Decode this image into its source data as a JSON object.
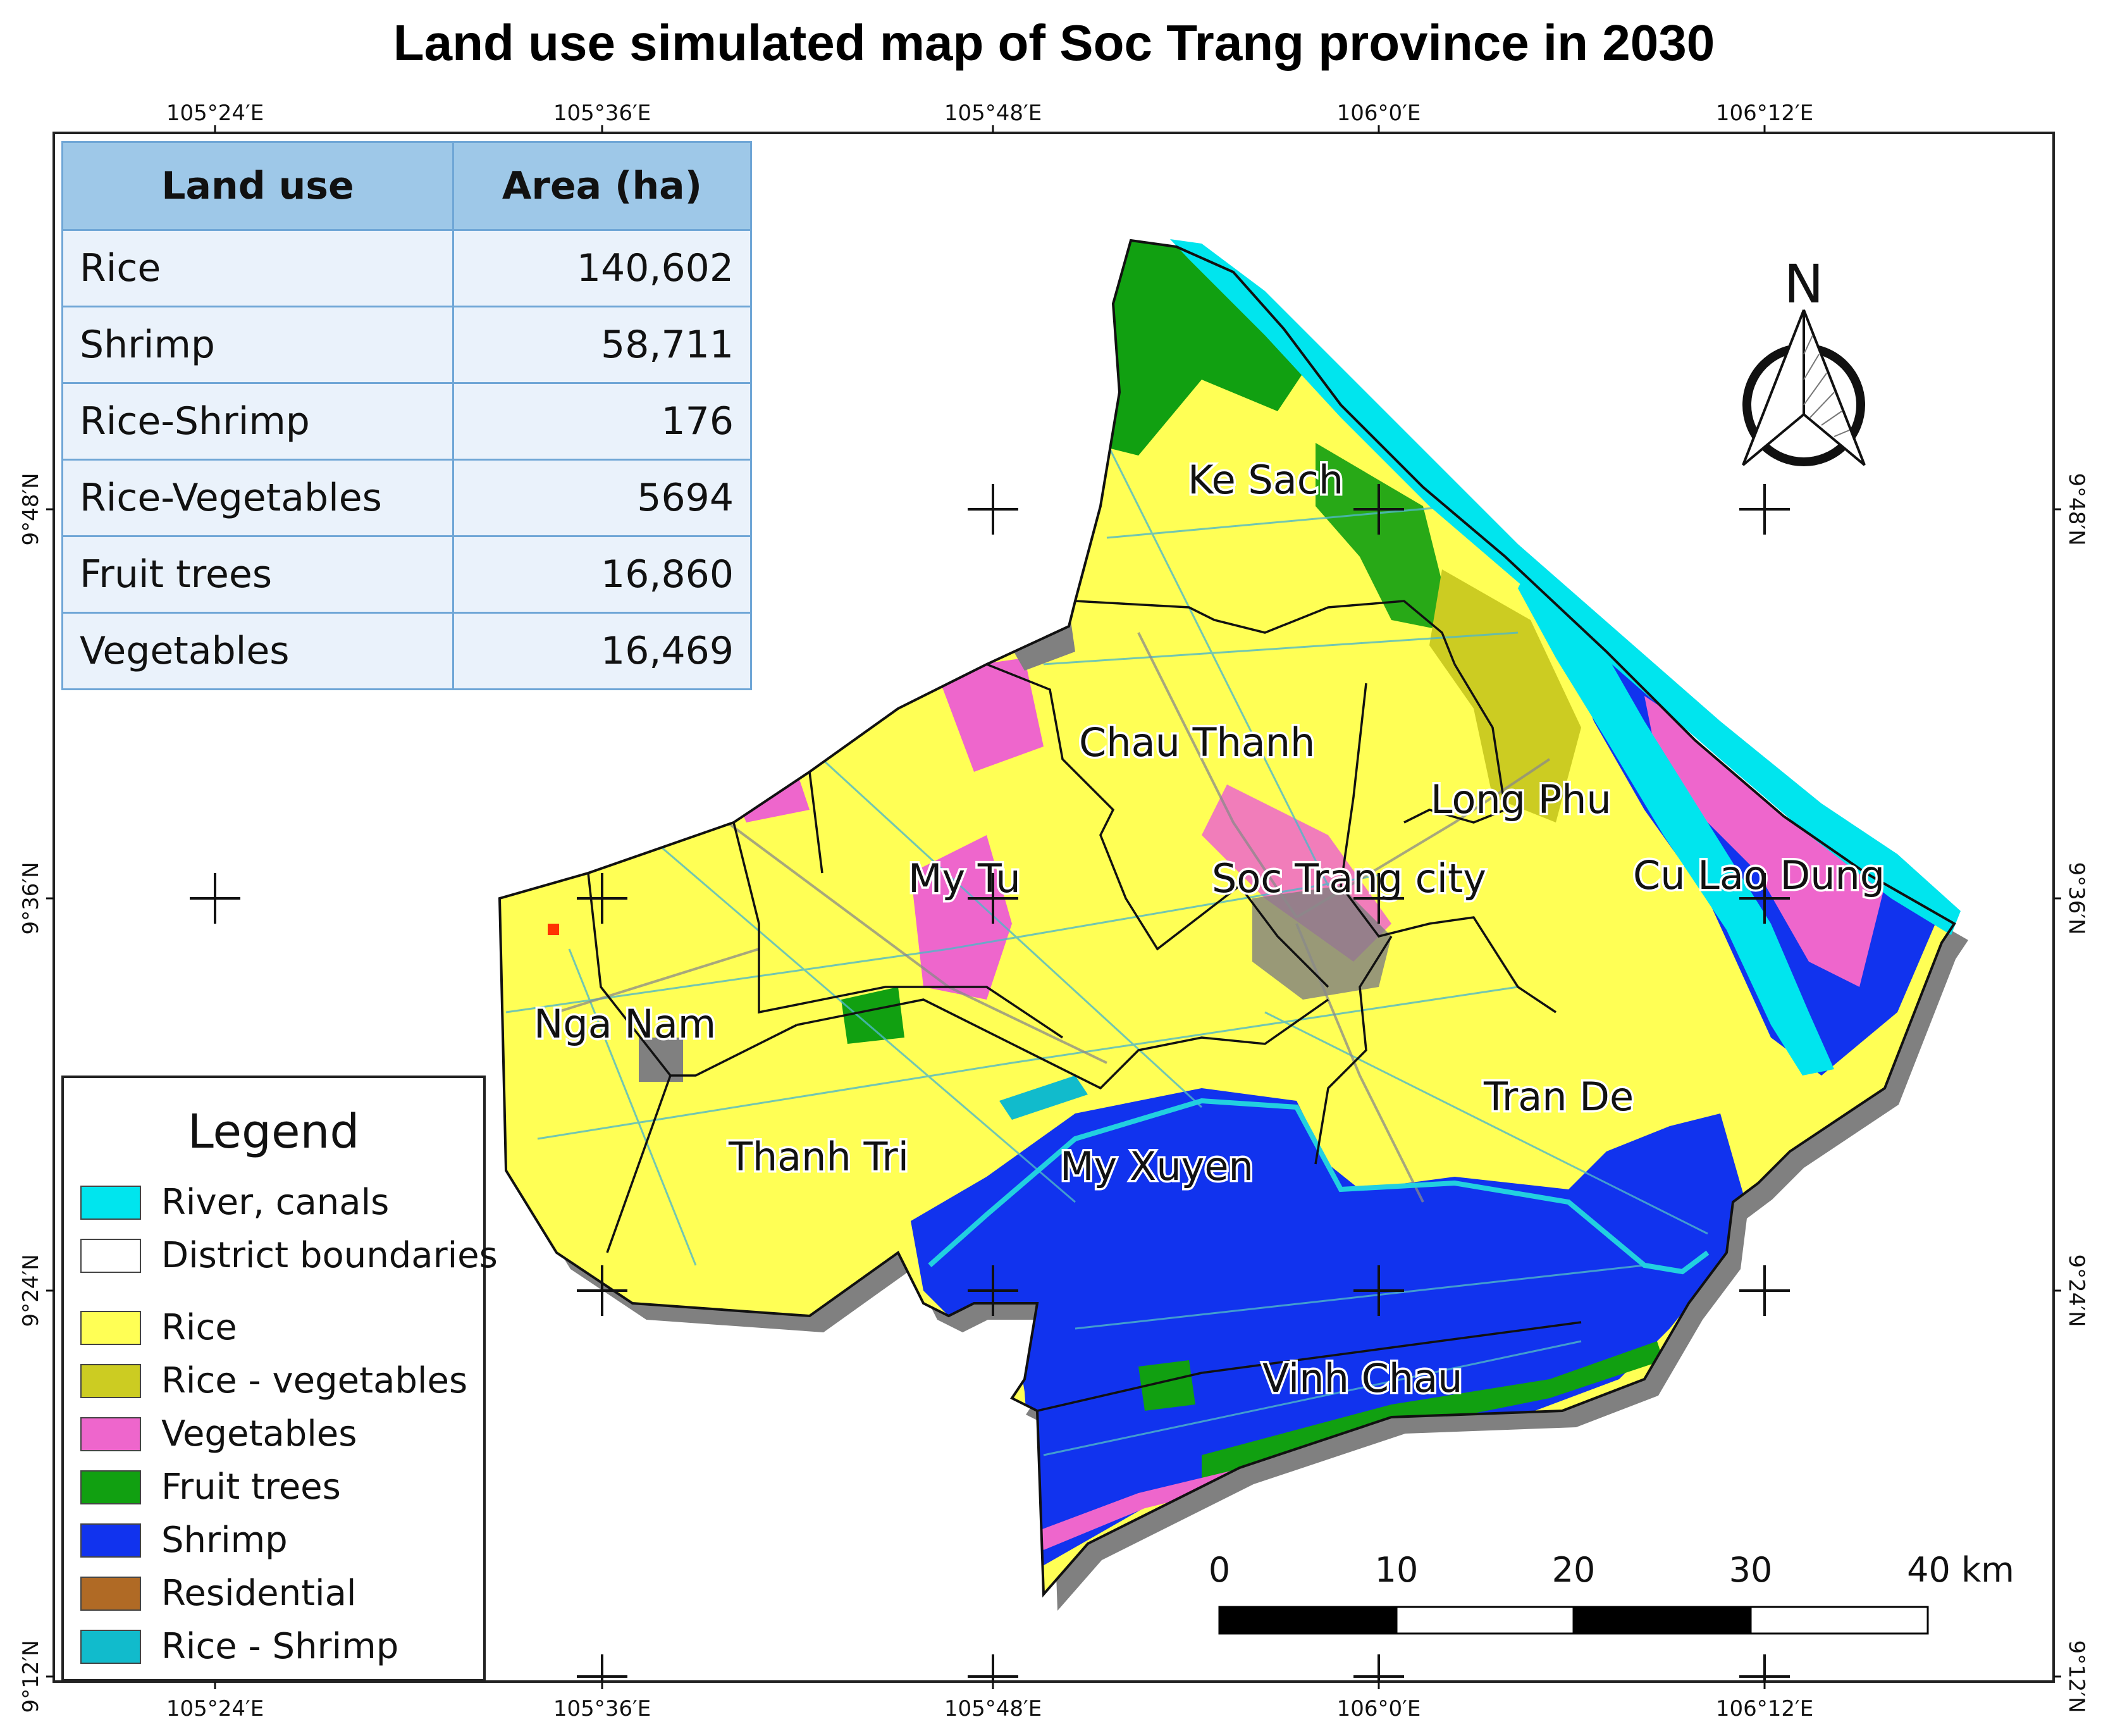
{
  "title": "Land use simulated map of Soc Trang province in 2030",
  "graticule": {
    "top_labels": [
      "105°24′E",
      "105°36′E",
      "105°48′E",
      "106°0′E",
      "106°12′E"
    ],
    "bottom_labels": [
      "105°24′E",
      "105°36′E",
      "105°48′E",
      "106°0′E",
      "106°12′E"
    ],
    "left_labels": [
      "9°48′N",
      "9°36′N",
      "9°24′N",
      "9°12′N"
    ],
    "right_labels": [
      "9°48′N",
      "9°36′N",
      "9°24′N",
      "9°12′N"
    ]
  },
  "area_table": {
    "headers": [
      "Land use",
      "Area (ha)"
    ],
    "rows": [
      {
        "land_use": "Rice",
        "area": "140,602"
      },
      {
        "land_use": "Shrimp",
        "area": "58,711"
      },
      {
        "land_use": "Rice-Shrimp",
        "area": "176"
      },
      {
        "land_use": "Rice-Vegetables",
        "area": "5694"
      },
      {
        "land_use": "Fruit trees",
        "area": "16,860"
      },
      {
        "land_use": "Vegetables",
        "area": "16,469"
      }
    ]
  },
  "legend": {
    "title": "Legend",
    "items": [
      {
        "label": "River, canals",
        "color": "#00e5ee"
      },
      {
        "label": "District boundaries",
        "color": "#ffffff"
      },
      {
        "label": "Rice",
        "color": "#ffff55"
      },
      {
        "label": "Rice - vegetables",
        "color": "#cccc22"
      },
      {
        "label": "Vegetables",
        "color": "#ee66cc"
      },
      {
        "label": "Fruit trees",
        "color": "#11a011"
      },
      {
        "label": "Shrimp",
        "color": "#1133ee"
      },
      {
        "label": "Residential",
        "color": "#b06a25"
      },
      {
        "label": "Rice - Shrimp",
        "color": "#11bbcc"
      }
    ]
  },
  "districts": [
    "Ke Sach",
    "Chau Thanh",
    "Long Phu",
    "Cu Lao Dung",
    "My Tu",
    "Soc Trang city",
    "Nga Nam",
    "Tran De",
    "Thanh Tri",
    "My Xuyen",
    "Vinh Chau"
  ],
  "north_arrow": {
    "label": "N"
  },
  "scale_bar": {
    "labels": [
      "0",
      "10",
      "20",
      "30",
      "40 km"
    ]
  },
  "colors": {
    "rice": "#ffff55",
    "rice_vegetables": "#cccc22",
    "vegetables": "#ee66cc",
    "fruit_trees": "#11a011",
    "shrimp": "#1133ee",
    "river": "#00e5ee",
    "residential": "#b06a25",
    "rice_shrimp": "#11bbcc",
    "shadow": "#808080"
  }
}
